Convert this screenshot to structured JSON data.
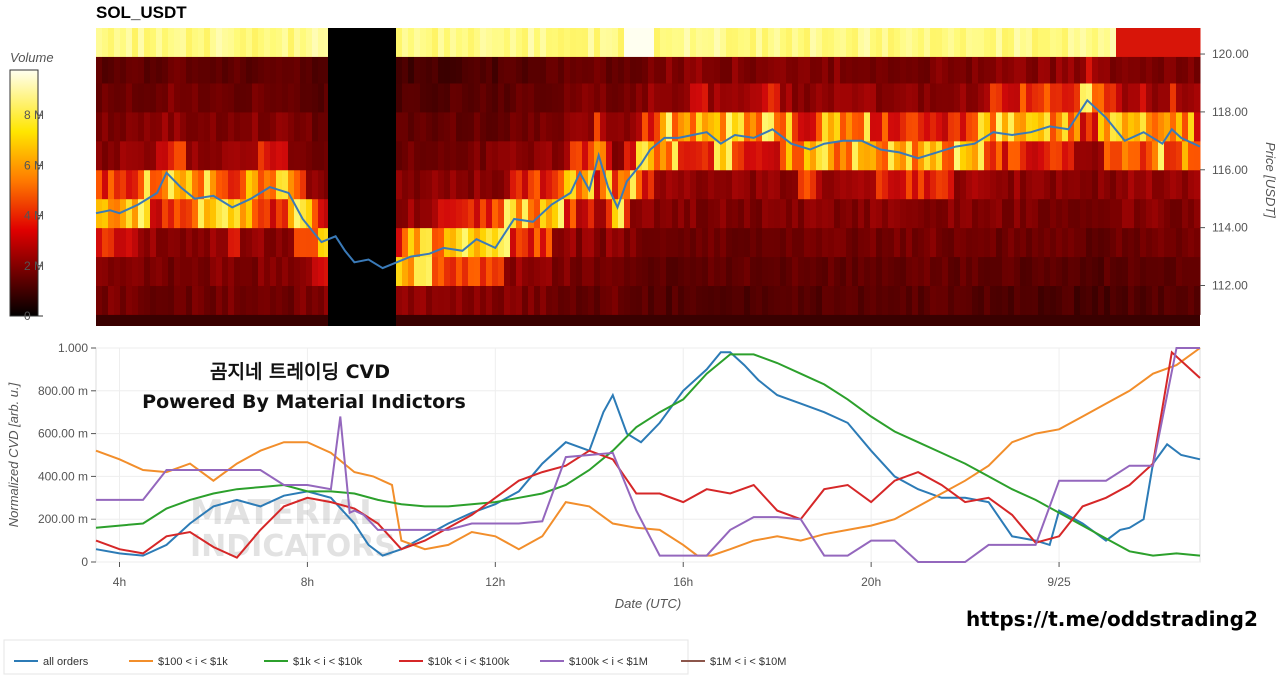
{
  "chart_data": [
    {
      "type": "heatmap",
      "title": "SOL_USDT",
      "ylabel": "Price [USDT]",
      "ylim": [
        110.6,
        120.9
      ],
      "y_ticks": [
        "112.00",
        "114.00",
        "116.00",
        "118.00",
        "120.00"
      ],
      "colorbar": {
        "label": "Volume",
        "ticks": [
          "0",
          "2 M",
          "4 M",
          "6 M",
          "8 M"
        ],
        "range": [
          0,
          9800000
        ]
      },
      "price_series": {
        "color": "#3a7ab8",
        "x_hours": [
          3.5,
          3.8,
          4.0,
          4.4,
          4.8,
          5.0,
          5.3,
          5.6,
          6.0,
          6.4,
          6.8,
          7.2,
          7.6,
          7.9,
          8.3,
          8.6,
          8.8,
          9.0,
          9.3,
          9.6,
          9.9,
          10.2,
          10.6,
          10.9,
          11.3,
          11.6,
          12.0,
          12.4,
          12.8,
          13.2,
          13.6,
          13.8,
          14.0,
          14.2,
          14.4,
          14.6,
          14.8,
          15.1,
          15.3,
          15.6,
          15.9,
          16.2,
          16.5,
          16.8,
          17.1,
          17.5,
          17.9,
          18.3,
          18.7,
          19.0,
          19.4,
          19.8,
          20.2,
          20.6,
          21.0,
          21.4,
          21.8,
          22.2,
          22.6,
          23.0,
          23.4,
          23.8,
          24.2,
          24.6,
          25.0,
          25.4,
          25.8,
          26.2,
          26.4,
          26.6,
          27.0
        ],
        "price": [
          114.5,
          114.6,
          114.5,
          114.8,
          115.2,
          115.9,
          115.4,
          115.0,
          115.1,
          114.7,
          115.0,
          115.4,
          115.2,
          114.3,
          113.5,
          113.7,
          113.2,
          112.8,
          112.9,
          112.6,
          112.8,
          113.0,
          113.1,
          113.3,
          113.2,
          113.6,
          113.3,
          114.3,
          114.2,
          114.8,
          115.2,
          115.9,
          115.3,
          116.5,
          115.4,
          114.7,
          115.6,
          116.2,
          116.7,
          117.1,
          117.1,
          117.2,
          117.3,
          116.9,
          117.2,
          117.1,
          117.4,
          116.9,
          116.7,
          116.9,
          117.0,
          117.0,
          116.7,
          116.6,
          116.4,
          116.6,
          116.8,
          116.9,
          117.3,
          117.2,
          117.3,
          117.5,
          117.4,
          118.4,
          117.8,
          117.0,
          117.3,
          116.9,
          117.4,
          117.1,
          116.8
        ]
      }
    },
    {
      "type": "line",
      "ylabel": "Normalized CVD [arb. u.]",
      "xlabel": "Date (UTC)",
      "ylim": [
        0,
        1000
      ],
      "y_ticks": [
        "0",
        "200.00 m",
        "400.00 m",
        "600.00 m",
        "800.00 m",
        "1.000"
      ],
      "x_ticks": [
        {
          "h": 4,
          "label": "4h"
        },
        {
          "h": 8,
          "label": "8h"
        },
        {
          "h": 12,
          "label": "12h"
        },
        {
          "h": 16,
          "label": "16h"
        },
        {
          "h": 20,
          "label": "20h"
        },
        {
          "h": 24,
          "label": "9/25"
        }
      ],
      "x_range_hours": [
        3.5,
        27.0
      ],
      "series": [
        {
          "name": "all orders",
          "color": "#2c7bb6",
          "x": [
            3.5,
            4.0,
            4.5,
            5.0,
            5.5,
            6.0,
            6.5,
            7.0,
            7.5,
            8.0,
            8.5,
            9.0,
            9.3,
            9.6,
            10.0,
            10.5,
            11.0,
            11.5,
            12.0,
            12.5,
            13.0,
            13.5,
            14.0,
            14.3,
            14.5,
            14.8,
            15.1,
            15.5,
            16.0,
            16.5,
            16.8,
            17.0,
            17.3,
            17.6,
            18.0,
            18.5,
            19.0,
            19.5,
            20.0,
            20.5,
            21.0,
            21.5,
            22.0,
            22.5,
            23.0,
            23.5,
            23.8,
            24.0,
            24.5,
            25.0,
            25.3,
            25.5,
            25.8,
            26.0,
            26.3,
            26.6,
            27.0
          ],
          "y": [
            60,
            40,
            30,
            80,
            180,
            260,
            290,
            260,
            310,
            330,
            300,
            180,
            80,
            30,
            60,
            120,
            180,
            230,
            270,
            330,
            460,
            560,
            520,
            700,
            780,
            600,
            560,
            650,
            800,
            900,
            980,
            980,
            920,
            850,
            780,
            740,
            700,
            650,
            520,
            400,
            340,
            300,
            300,
            280,
            120,
            100,
            80,
            240,
            180,
            100,
            150,
            160,
            200,
            460,
            550,
            500,
            480
          ]
        },
        {
          "name": "$100 < i < $1k",
          "color": "#f28e2b",
          "x": [
            3.5,
            4.0,
            4.5,
            5.0,
            5.5,
            6.0,
            6.5,
            7.0,
            7.5,
            8.0,
            8.5,
            9.0,
            9.4,
            9.8,
            10.0,
            10.5,
            11.0,
            11.5,
            12.0,
            12.5,
            13.0,
            13.5,
            14.0,
            14.5,
            15.0,
            15.5,
            16.0,
            16.3,
            16.6,
            17.0,
            17.5,
            18.0,
            18.5,
            19.0,
            19.5,
            20.0,
            20.5,
            21.0,
            21.5,
            22.0,
            22.5,
            23.0,
            23.5,
            24.0,
            24.5,
            25.0,
            25.5,
            26.0,
            26.5,
            27.0
          ],
          "y": [
            520,
            480,
            430,
            420,
            460,
            380,
            460,
            520,
            560,
            560,
            510,
            420,
            400,
            360,
            100,
            60,
            80,
            140,
            120,
            60,
            120,
            280,
            260,
            180,
            160,
            150,
            80,
            30,
            30,
            60,
            100,
            120,
            100,
            130,
            150,
            170,
            200,
            260,
            320,
            380,
            450,
            560,
            600,
            620,
            680,
            740,
            800,
            880,
            920,
            1000
          ]
        },
        {
          "name": "$1k < i < $10k",
          "color": "#2ca02c",
          "x": [
            3.5,
            4.0,
            4.5,
            5.0,
            5.5,
            6.0,
            6.5,
            7.0,
            7.5,
            8.0,
            8.5,
            9.0,
            9.5,
            10.0,
            10.5,
            11.0,
            11.5,
            12.0,
            12.5,
            13.0,
            13.5,
            14.0,
            14.5,
            15.0,
            15.5,
            16.0,
            16.5,
            17.0,
            17.5,
            18.0,
            18.5,
            19.0,
            19.5,
            20.0,
            20.5,
            21.0,
            21.5,
            22.0,
            22.5,
            23.0,
            23.5,
            24.0,
            24.5,
            25.0,
            25.5,
            26.0,
            26.5,
            27.0
          ],
          "y": [
            160,
            170,
            180,
            250,
            290,
            320,
            340,
            350,
            360,
            330,
            330,
            320,
            290,
            270,
            260,
            260,
            270,
            280,
            300,
            320,
            360,
            430,
            520,
            630,
            700,
            760,
            880,
            970,
            970,
            930,
            880,
            830,
            760,
            680,
            610,
            560,
            510,
            460,
            400,
            340,
            290,
            230,
            170,
            110,
            50,
            30,
            40,
            30
          ]
        },
        {
          "name": "$10k < i < $100k",
          "color": "#d62728",
          "x": [
            3.5,
            4.0,
            4.5,
            5.0,
            5.5,
            6.0,
            6.5,
            7.0,
            7.5,
            8.0,
            8.5,
            9.0,
            9.5,
            10.0,
            10.5,
            11.0,
            11.5,
            12.0,
            12.5,
            13.0,
            13.5,
            14.0,
            14.5,
            15.0,
            15.5,
            16.0,
            16.5,
            17.0,
            17.5,
            18.0,
            18.5,
            19.0,
            19.5,
            20.0,
            20.5,
            21.0,
            21.5,
            22.0,
            22.5,
            23.0,
            23.5,
            24.0,
            24.5,
            25.0,
            25.5,
            26.0,
            26.4,
            26.7,
            27.0
          ],
          "y": [
            100,
            60,
            40,
            120,
            140,
            70,
            20,
            150,
            260,
            300,
            280,
            250,
            180,
            60,
            100,
            160,
            220,
            300,
            380,
            420,
            450,
            520,
            480,
            320,
            320,
            280,
            340,
            320,
            360,
            240,
            200,
            340,
            360,
            280,
            380,
            420,
            360,
            280,
            300,
            220,
            90,
            120,
            260,
            300,
            360,
            460,
            980,
            920,
            860
          ]
        },
        {
          "name": "$100k < i < $1M",
          "color": "#9467bd",
          "x": [
            3.5,
            4.0,
            4.5,
            5.0,
            5.5,
            6.0,
            6.5,
            7.0,
            7.5,
            8.0,
            8.5,
            8.7,
            8.9,
            9.0,
            9.2,
            9.5,
            10.0,
            10.5,
            11.0,
            11.5,
            12.0,
            12.5,
            13.0,
            13.5,
            14.0,
            14.5,
            15.0,
            15.5,
            16.0,
            16.5,
            17.0,
            17.5,
            18.0,
            18.5,
            19.0,
            19.5,
            20.0,
            20.5,
            21.0,
            21.5,
            22.0,
            22.5,
            23.0,
            23.5,
            24.0,
            24.5,
            25.0,
            25.5,
            26.0,
            26.5,
            27.0
          ],
          "y": [
            290,
            290,
            290,
            430,
            430,
            430,
            430,
            430,
            360,
            360,
            340,
            680,
            230,
            240,
            220,
            150,
            150,
            150,
            150,
            180,
            180,
            180,
            190,
            490,
            500,
            510,
            240,
            30,
            30,
            30,
            150,
            210,
            210,
            200,
            30,
            30,
            100,
            100,
            0,
            0,
            0,
            80,
            80,
            80,
            380,
            380,
            380,
            450,
            450,
            1000,
            1000
          ]
        },
        {
          "name": "$1M < i < $10M",
          "color": "#8c564b",
          "x": [],
          "y": []
        }
      ]
    }
  ],
  "watermark": {
    "line1": "곰지네 트레이딩 CVD",
    "line2": "Powered By Material Indictors",
    "logo_line1": "MATERIAL",
    "logo_line2": "INDICATORS"
  },
  "url_text": "https://t.me/oddstrading2",
  "legend": [
    "all orders",
    "$100 < i < $1k",
    "$1k < i < $10k",
    "$10k < i < $100k",
    "$100k < i < $1M",
    "$1M < i < $10M"
  ]
}
